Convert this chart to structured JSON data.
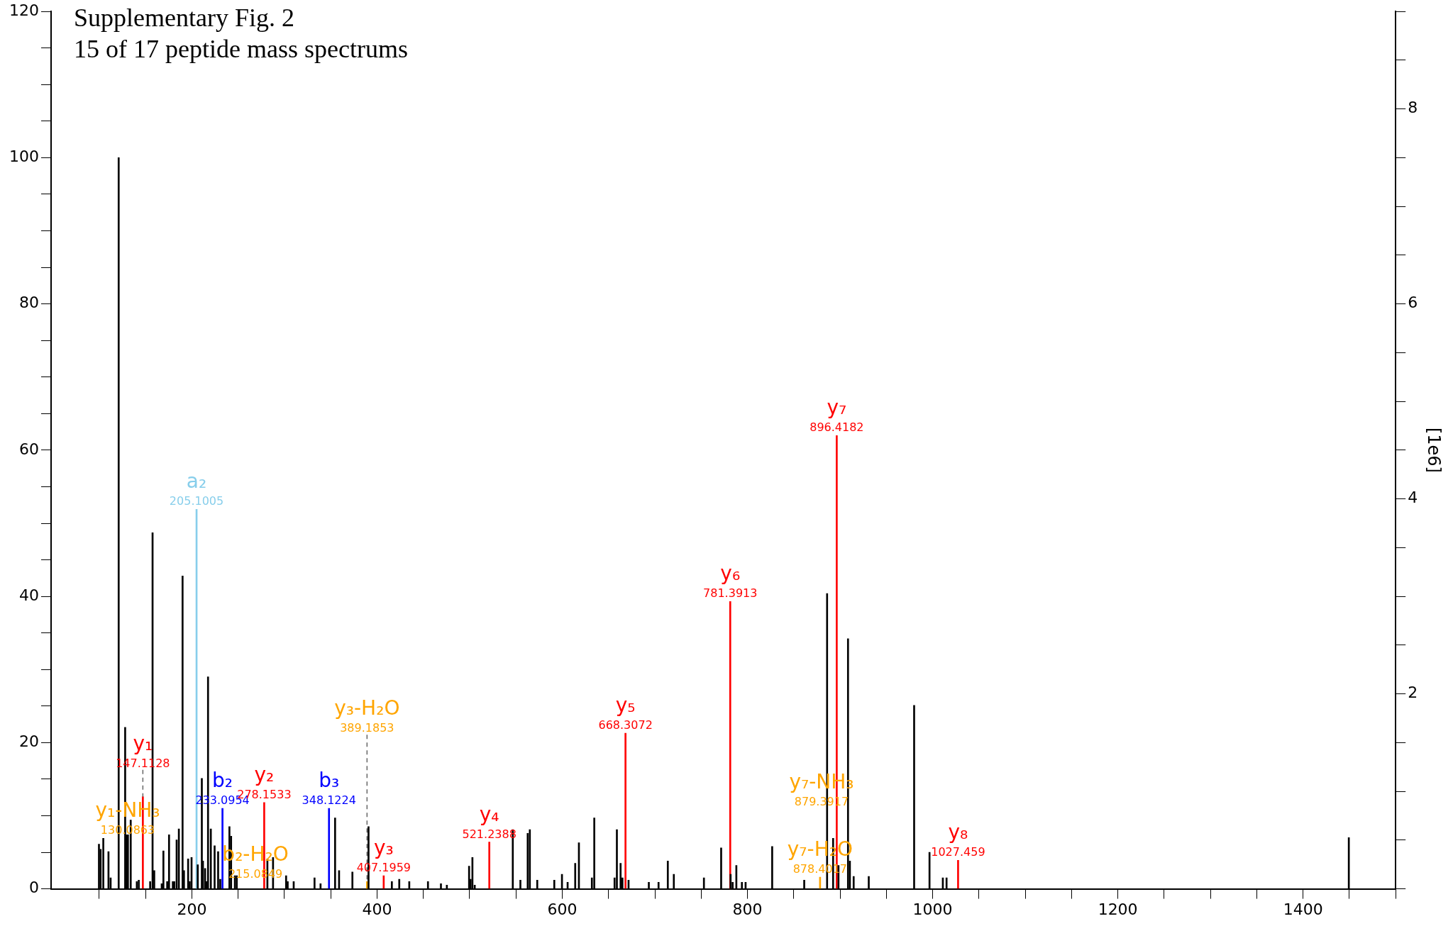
{
  "chart_data": {
    "type": "bar",
    "title": "Supplementary Fig. 2",
    "subtitle": "15 of 17 peptide mass spectrums",
    "y2label": "[1e6]",
    "xlim": [
      48,
      1500
    ],
    "xticks": [
      {
        "value": 100,
        "label": null
      },
      {
        "value": 150,
        "label": null
      },
      200,
      {
        "value": 250,
        "label": null
      },
      {
        "value": 300,
        "label": null
      },
      {
        "value": 350,
        "label": null
      },
      400,
      {
        "value": 450,
        "label": null
      },
      {
        "value": 500,
        "label": null
      },
      {
        "value": 550,
        "label": null
      },
      600,
      {
        "value": 650,
        "label": null
      },
      {
        "value": 700,
        "label": null
      },
      {
        "value": 750,
        "label": null
      },
      800,
      {
        "value": 850,
        "label": null
      },
      {
        "value": 900,
        "label": null
      },
      {
        "value": 950,
        "label": null
      },
      1000,
      {
        "value": 1050,
        "label": null
      },
      {
        "value": 1100,
        "label": null
      },
      {
        "value": 1150,
        "label": null
      },
      1200,
      {
        "value": 1250,
        "label": null
      },
      {
        "value": 1300,
        "label": null
      },
      {
        "value": 1350,
        "label": null
      },
      1400,
      {
        "value": 1450,
        "label": null
      },
      {
        "value": 1500,
        "label": null
      }
    ],
    "ylim": [
      0,
      120
    ],
    "yticks": [
      0,
      {
        "value": 5,
        "label": null
      },
      {
        "value": 10,
        "label": null
      },
      {
        "value": 15,
        "label": null
      },
      20,
      {
        "value": 25,
        "label": null
      },
      {
        "value": 30,
        "label": null
      },
      {
        "value": 35,
        "label": null
      },
      40,
      {
        "value": 45,
        "label": null
      },
      {
        "value": 50,
        "label": null
      },
      {
        "value": 55,
        "label": null
      },
      60,
      {
        "value": 65,
        "label": null
      },
      {
        "value": 70,
        "label": null
      },
      {
        "value": 75,
        "label": null
      },
      80,
      {
        "value": 85,
        "label": null
      },
      {
        "value": 90,
        "label": null
      },
      {
        "value": 95,
        "label": null
      },
      100,
      {
        "value": 105,
        "label": null
      },
      {
        "value": 110,
        "label": null
      },
      {
        "value": 115,
        "label": null
      },
      120
    ],
    "y2lim": [
      0,
      9
    ],
    "y2ticks": [
      {
        "value": 0,
        "label": null
      },
      {
        "value": 0.5,
        "label": null
      },
      {
        "value": 1,
        "label": null
      },
      {
        "value": 1.5,
        "label": null
      },
      2,
      {
        "value": 2.5,
        "label": null
      },
      {
        "value": 3,
        "label": null
      },
      {
        "value": 3.5,
        "label": null
      },
      4,
      {
        "value": 4.5,
        "label": null
      },
      {
        "value": 5,
        "label": null
      },
      {
        "value": 5.5,
        "label": null
      },
      6,
      {
        "value": 6.5,
        "label": null
      },
      {
        "value": 7,
        "label": null
      },
      {
        "value": 7.5,
        "label": null
      },
      8,
      {
        "value": 8.5,
        "label": null
      },
      {
        "value": 9,
        "label": null
      }
    ],
    "grid": false,
    "legend": false,
    "series": [
      {
        "color": "#000000",
        "x": [
          99.7,
          101.5,
          104.4,
          110,
          112.3,
          121,
          128,
          129.5,
          131,
          134,
          140.6,
          142.7,
          155,
          157.6,
          159.4,
          167.5,
          169.3,
          173.4,
          175.4,
          179.5,
          181,
          183.6,
          186,
          190,
          191.5,
          196,
          197.7,
          199.7,
          206.4,
          210.8,
          212,
          214.3,
          216,
          217.5,
          220.5,
          224.6,
          228.4,
          230.7,
          240.6,
          242.4,
          246.5,
          248.5,
          281.6,
          287.7,
          301.8,
          303.5,
          310,
          332.5,
          339,
          354.7,
          359,
          373.4,
          390.8,
          416,
          424,
          434.8,
          455,
          469,
          475.4,
          499.4,
          501,
          503,
          505.5,
          546.6,
          554.8,
          562.7,
          565,
          573,
          591.4,
          599.7,
          605.8,
          614,
          618,
          632,
          634.6,
          656.5,
          659,
          663,
          665,
          671.6,
          693.5,
          704,
          714,
          720.5,
          753,
          771.6,
          781.8,
          784,
          788,
          794,
          798,
          826.7,
          861.3,
          886,
          892.5,
          898.3,
          908.6,
          910.6,
          914.7,
          931,
          980,
          996.6,
          1011,
          1015,
          1449.4
        ],
        "values": [
          6.1,
          5.4,
          6.9,
          5.1,
          1.5,
          100,
          22.1,
          7.4,
          7.4,
          9.4,
          1.0,
          1.2,
          1.0,
          48.7,
          2.5,
          0.7,
          5.2,
          1.0,
          7.4,
          1.0,
          1.0,
          6.7,
          8.2,
          42.8,
          2.5,
          4.1,
          1.0,
          4.3,
          3.3,
          15.1,
          3.8,
          2.8,
          1.0,
          29.0,
          8.2,
          5.9,
          5.1,
          1.3,
          8.5,
          7.2,
          1.8,
          1.8,
          4.1,
          4.3,
          1.8,
          1.0,
          1.0,
          1.5,
          0.7,
          9.7,
          2.5,
          2.3,
          8.5,
          1.0,
          1.3,
          1.0,
          1.0,
          0.7,
          0.5,
          3.1,
          1.3,
          4.3,
          0.5,
          8.1,
          1.2,
          7.6,
          8.1,
          1.2,
          1.2,
          2.0,
          0.9,
          3.5,
          6.3,
          1.5,
          9.7,
          1.5,
          8.1,
          3.5,
          1.5,
          1.2,
          0.9,
          0.9,
          3.8,
          2.0,
          1.5,
          5.6,
          2.0,
          0.9,
          3.2,
          0.9,
          0.9,
          5.8,
          1.2,
          40.4,
          6.9,
          3.2,
          34.2,
          3.8,
          1.7,
          1.7,
          25.1,
          5.0,
          1.5,
          1.5,
          7.0
        ]
      },
      {
        "color": "#87ceeb",
        "x": [
          205.1005
        ],
        "values": [
          51.9
        ]
      },
      {
        "color": "#0000ff",
        "x": [
          233.0954,
          348.1224
        ],
        "values": [
          11.0,
          11.0
        ]
      },
      {
        "color": "#ff0000",
        "x": [
          147.1128,
          278.1533,
          407.1959,
          521.2388,
          668.3072,
          781.3913,
          896.4182,
          1027.459
        ],
        "values": [
          12.6,
          11.8,
          1.8,
          6.4,
          21.3,
          39.3,
          62.0,
          3.9
        ]
      },
      {
        "color": "#ffa500",
        "x": [
          389.1853,
          878.4017
        ],
        "values": [
          1.0,
          1.6
        ]
      }
    ],
    "annotations": [
      "y₁-NH₃\n130.0863",
      {
        "text": "y₁\n147.1128",
        "x": 147.1128,
        "y": 12.6
      },
      {
        "text": "a₂\n205.1005",
        "x": 205.1005,
        "y": 51.9
      },
      "b₂-H₂O\n215.0849",
      {
        "text": "b₂\n233.0954",
        "x": 233.0954,
        "y": 11.0
      },
      {
        "text": "y₂\n278.1533",
        "x": 278.1533,
        "y": 11.8
      },
      {
        "text": "b₃\n348.1224",
        "x": 348.1224,
        "y": 11.0
      },
      {
        "text": "y₃-H₂O\n389.1853",
        "x": 389.1853,
        "y": 1.0
      },
      {
        "text": "y₃\n407.1959",
        "x": 407.1959,
        "y": 1.8
      },
      {
        "text": "y₄\n521.2388",
        "x": 521.2388,
        "y": 6.4
      },
      {
        "text": "y₅\n668.3072",
        "x": 668.3072,
        "y": 21.3
      },
      {
        "text": "y₆\n781.3913",
        "x": 781.3913,
        "y": 39.3
      },
      {
        "text": "y₇-H₂O\n878.4017",
        "x": 878.4017,
        "y": 1.6
      },
      "y₇-NH₃\n879.3917",
      {
        "text": "y₇\n896.4182",
        "x": 896.4182,
        "y": 62.0
      },
      {
        "text": "y₈\n1027.459",
        "x": 1027.459,
        "y": 3.9
      }
    ]
  }
}
